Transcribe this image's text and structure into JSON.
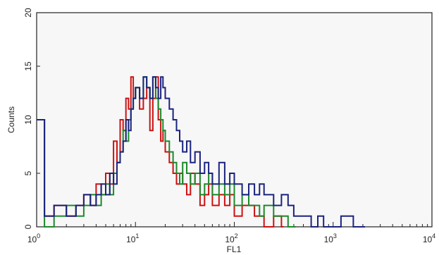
{
  "chart_data": {
    "type": "line",
    "title": "",
    "xlabel": "FL1",
    "ylabel": "Counts",
    "x_scale": "log",
    "xlim": [
      1,
      10000
    ],
    "ylim": [
      0,
      20
    ],
    "grid": false,
    "legend": "none",
    "y_ticks": [
      {
        "value": 0,
        "label": "0"
      },
      {
        "value": 5,
        "label": "5"
      },
      {
        "value": 10,
        "label": "10"
      },
      {
        "value": 15,
        "label": "15"
      },
      {
        "value": 20,
        "label": "20"
      }
    ],
    "x_ticks": [
      {
        "value": 1,
        "base": "10",
        "exp": "0"
      },
      {
        "value": 10,
        "base": "10",
        "exp": "1"
      },
      {
        "value": 100,
        "base": "10",
        "exp": "2"
      },
      {
        "value": 1000,
        "base": "10",
        "exp": "3"
      },
      {
        "value": 10000,
        "base": "10",
        "exp": "4"
      }
    ],
    "series": [
      {
        "color": "#cc1111",
        "x": [
          1,
          1.2,
          1.5,
          2,
          2.5,
          3,
          3.5,
          4,
          4.5,
          5,
          5.5,
          6,
          6.5,
          7,
          7.5,
          8,
          8.5,
          9,
          9.5,
          10,
          11,
          12,
          13,
          14,
          15,
          16,
          17,
          18,
          19,
          20,
          22,
          24,
          26,
          28,
          30,
          33,
          36,
          40,
          45,
          50,
          55,
          60,
          70,
          80,
          90,
          100,
          120,
          140,
          160,
          180,
          200,
          250,
          300
        ],
        "y": [
          10,
          1,
          2,
          1,
          2,
          3,
          2,
          4,
          3,
          5,
          4,
          8,
          6,
          10,
          9,
          12,
          11,
          14,
          12,
          13,
          11,
          12,
          13,
          9,
          12,
          14,
          10,
          8,
          9,
          7,
          6,
          5,
          4,
          5,
          4,
          3,
          5,
          4,
          2,
          3,
          4,
          2,
          3,
          2,
          3,
          1,
          2,
          2,
          1,
          1,
          0,
          1,
          0
        ]
      },
      {
        "color": "#1a8a2a",
        "x": [
          1,
          1.2,
          1.5,
          2,
          2.5,
          3,
          3.5,
          4,
          4.5,
          5,
          5.5,
          6,
          6.5,
          7,
          7.5,
          8,
          8.5,
          9,
          9.5,
          10,
          11,
          12,
          13,
          14,
          15,
          16,
          17,
          18,
          19,
          20,
          22,
          24,
          26,
          28,
          30,
          33,
          36,
          40,
          45,
          50,
          55,
          60,
          70,
          80,
          90,
          100,
          120,
          140,
          160,
          180,
          200,
          250,
          300,
          350,
          400
        ],
        "y": [
          10,
          0,
          1,
          2,
          1,
          2,
          3,
          2,
          3,
          4,
          3,
          5,
          6,
          7,
          9,
          8,
          10,
          11,
          12,
          13,
          12,
          14,
          13,
          12,
          14,
          12,
          11,
          10,
          9,
          8,
          7,
          6,
          5,
          4,
          6,
          5,
          4,
          5,
          3,
          4,
          5,
          3,
          4,
          3,
          4,
          2,
          3,
          2,
          2,
          1,
          2,
          1,
          1,
          0,
          0
        ]
      },
      {
        "color": "#1a237e",
        "x": [
          1,
          1.2,
          1.5,
          2,
          2.5,
          3,
          3.5,
          4,
          4.5,
          5,
          5.5,
          6,
          6.5,
          7,
          7.5,
          8,
          8.5,
          9,
          9.5,
          10,
          11,
          12,
          13,
          14,
          15,
          16,
          17,
          18,
          19,
          20,
          22,
          24,
          26,
          28,
          30,
          33,
          36,
          40,
          45,
          50,
          55,
          60,
          70,
          80,
          90,
          100,
          120,
          140,
          160,
          180,
          200,
          250,
          300,
          350,
          400,
          500,
          600,
          700,
          800,
          1000,
          1200,
          1600,
          2000
        ],
        "y": [
          10,
          1,
          2,
          1,
          2,
          3,
          2,
          3,
          4,
          3,
          5,
          4,
          6,
          7,
          8,
          10,
          9,
          11,
          12,
          13,
          12,
          14,
          13,
          12,
          14,
          13,
          12,
          14,
          13,
          12,
          11,
          10,
          9,
          8,
          7,
          8,
          6,
          7,
          5,
          6,
          5,
          4,
          6,
          4,
          5,
          4,
          3,
          4,
          3,
          4,
          3,
          2,
          3,
          2,
          1,
          1,
          0,
          1,
          0,
          0,
          1,
          0,
          0
        ]
      }
    ]
  }
}
